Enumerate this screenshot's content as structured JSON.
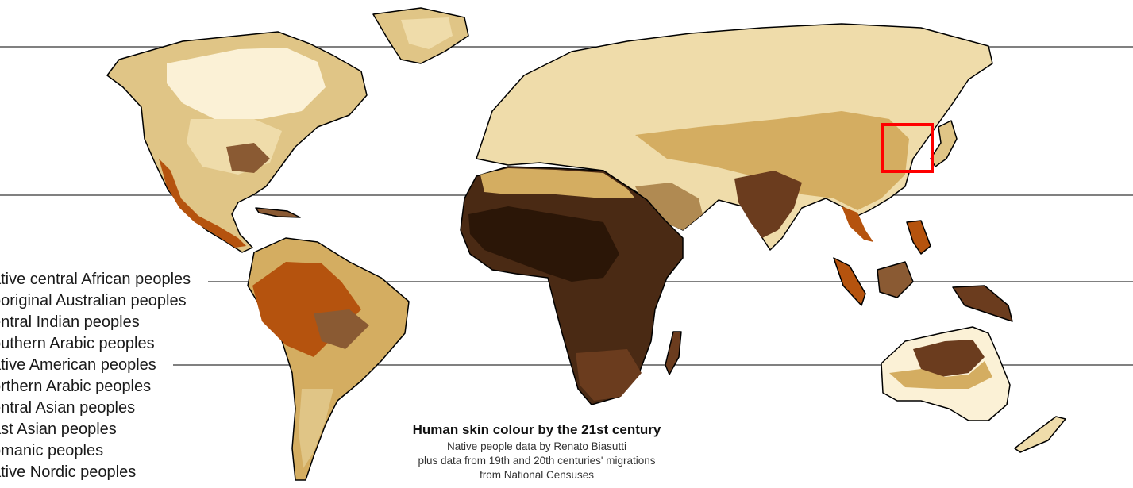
{
  "title": "Human skin colour by the 21st century",
  "subtitle_lines": [
    "Native people data by Renato Biasutti",
    "plus data from 19th and 20th centuries' migrations",
    "from National Censuses"
  ],
  "legend": [
    {
      "label": "ative central African peoples",
      "color": "#2b1607"
    },
    {
      "label": "boriginal Australian peoples",
      "color": "#4a2a14"
    },
    {
      "label": "entral Indian peoples",
      "color": "#6b3c1e"
    },
    {
      "label": "outhern Arabic peoples",
      "color": "#8a5a33"
    },
    {
      "label": "ative American peoples",
      "color": "#b5530e"
    },
    {
      "label": "orthern Arabic peoples",
      "color": "#b08a52"
    },
    {
      "label": "entral Asian peoples",
      "color": "#d4ad61"
    },
    {
      "label": "ast Asian peoples",
      "color": "#e0c586"
    },
    {
      "label": "omanic peoples",
      "color": "#efdcaa"
    },
    {
      "label": "ative Nordic peoples",
      "color": "#fbf1d6"
    }
  ],
  "highlight": {
    "region": "Korean peninsula",
    "color": "#ff0000"
  }
}
